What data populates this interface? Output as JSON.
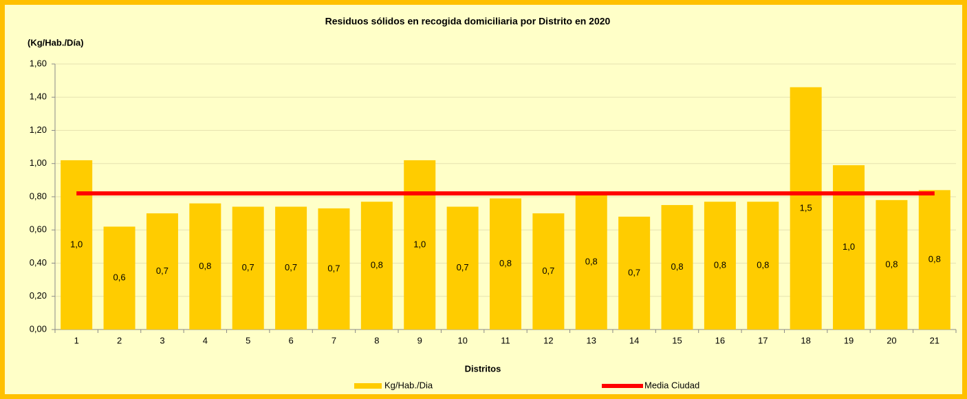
{
  "chart_data": {
    "type": "bar",
    "title": "Residuos sólidos en recogida domiciliaria por Distrito en 2020",
    "y_label": "(Kg/Hab./Día)",
    "x_label": "Distritos",
    "categories": [
      "1",
      "2",
      "3",
      "4",
      "5",
      "6",
      "7",
      "8",
      "9",
      "10",
      "11",
      "12",
      "13",
      "14",
      "15",
      "16",
      "17",
      "18",
      "19",
      "20",
      "21"
    ],
    "series": [
      {
        "name": "Kg/Hab./Dia",
        "type": "bar",
        "color": "#FFCC00",
        "values": [
          1.02,
          0.62,
          0.7,
          0.76,
          0.74,
          0.74,
          0.73,
          0.77,
          1.02,
          0.74,
          0.79,
          0.7,
          0.81,
          0.68,
          0.75,
          0.77,
          0.77,
          1.46,
          0.99,
          0.78,
          0.84
        ],
        "value_labels": [
          "1,0",
          "0,6",
          "0,7",
          "0,8",
          "0,7",
          "0,7",
          "0,7",
          "0,8",
          "1,0",
          "0,7",
          "0,8",
          "0,7",
          "0,8",
          "0,7",
          "0,8",
          "0,8",
          "0,8",
          "1,5",
          "1,0",
          "0,8",
          "0,8"
        ]
      },
      {
        "name": "Media Ciudad",
        "type": "line",
        "color": "#FF0000",
        "values": [
          0.82,
          0.82,
          0.82,
          0.82,
          0.82,
          0.82,
          0.82,
          0.82,
          0.82,
          0.82,
          0.82,
          0.82,
          0.82,
          0.82,
          0.82,
          0.82,
          0.82,
          0.82,
          0.82,
          0.82,
          0.82
        ]
      }
    ],
    "ylim": [
      0,
      1.6
    ],
    "yticks": [
      {
        "value": 0,
        "label": "0,00"
      },
      {
        "value": 0.2,
        "label": "0,20"
      },
      {
        "value": 0.4,
        "label": "0,40"
      },
      {
        "value": 0.6,
        "label": "0,60"
      },
      {
        "value": 0.8,
        "label": "0,80"
      },
      {
        "value": 1.0,
        "label": "1,00"
      },
      {
        "value": 1.2,
        "label": "1,20"
      },
      {
        "value": 1.4,
        "label": "1,40"
      },
      {
        "value": 1.6,
        "label": "1,60"
      }
    ],
    "grid": true,
    "legend": "bottom"
  }
}
